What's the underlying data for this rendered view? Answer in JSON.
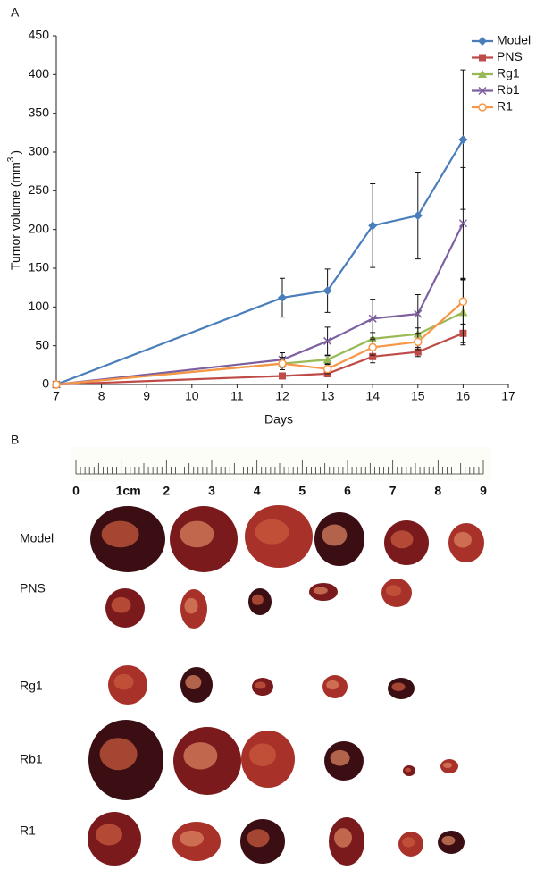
{
  "panel_a_label": "A",
  "chart_data": {
    "type": "line",
    "x_label": "Days",
    "y_label": "Tumor volume (mm",
    "y_label_sup": "3",
    "y_label_end": ")",
    "x": [
      7,
      12,
      13,
      14,
      15,
      16
    ],
    "xlim": [
      7,
      17
    ],
    "xticks": [
      7,
      8,
      9,
      10,
      11,
      12,
      13,
      14,
      15,
      16,
      17
    ],
    "ylim": [
      0,
      450
    ],
    "yticks": [
      0,
      50,
      100,
      150,
      200,
      250,
      300,
      350,
      400,
      450
    ],
    "grid": false,
    "legend": "top-right",
    "series": [
      {
        "name": "Model",
        "color": "#4a7ebb",
        "marker": "diamond",
        "values": [
          0,
          112,
          121,
          205,
          218,
          316
        ],
        "errors": [
          0,
          25,
          28,
          54,
          56,
          90
        ]
      },
      {
        "name": "PNS",
        "color": "#be4b48",
        "marker": "square",
        "values": [
          0,
          11,
          14,
          36,
          42,
          66
        ],
        "errors": [
          0,
          3,
          4,
          8,
          6,
          12
        ]
      },
      {
        "name": "Rg1",
        "color": "#98b954",
        "marker": "triangle",
        "values": [
          0,
          27,
          32,
          59,
          65,
          93
        ],
        "errors": [
          0,
          5,
          5,
          8,
          8,
          42
        ]
      },
      {
        "name": "Rb1",
        "color": "#7d5fa0",
        "marker": "x",
        "values": [
          0,
          32,
          56,
          85,
          91,
          208
        ],
        "errors": [
          0,
          9,
          18,
          25,
          25,
          72
        ]
      },
      {
        "name": "R1",
        "color": "#f79646",
        "marker": "circle",
        "values": [
          0,
          27,
          20,
          48,
          55,
          107
        ],
        "errors": [
          0,
          8,
          6,
          10,
          10,
          30
        ]
      }
    ]
  },
  "panel_b": {
    "label": "B",
    "ruler_labels": [
      "0",
      "1cm",
      "2",
      "3",
      "4",
      "5",
      "6",
      "7",
      "8",
      "9"
    ],
    "rows": [
      "Model",
      "PNS",
      "Rg1",
      "Rb1",
      "R1"
    ]
  }
}
